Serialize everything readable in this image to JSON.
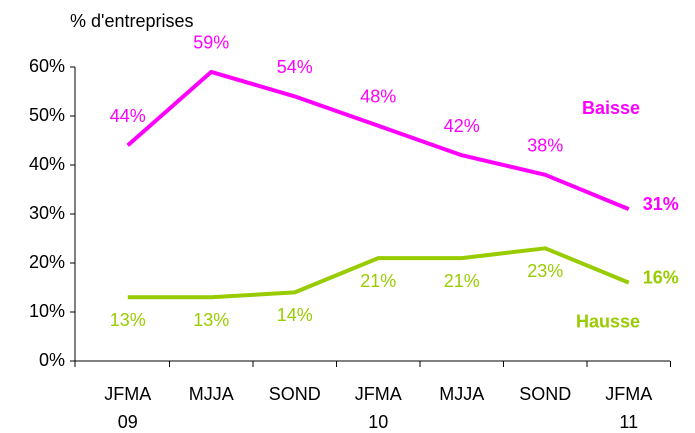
{
  "chart_data": {
    "type": "line",
    "y_axis_label": "% d'entreprises",
    "categories": [
      [
        "JFMA",
        "09"
      ],
      [
        "MJJA"
      ],
      [
        "SOND"
      ],
      [
        "JFMA",
        "10"
      ],
      [
        "MJJA"
      ],
      [
        "SOND"
      ],
      [
        "JFMA",
        "11"
      ]
    ],
    "series": [
      {
        "name": "Baisse",
        "color": "#ff00ff",
        "values": [
          44,
          59,
          54,
          48,
          42,
          38,
          31
        ],
        "value_labels": [
          "44%",
          "59%",
          "54%",
          "48%",
          "42%",
          "38%",
          "31%"
        ]
      },
      {
        "name": "Hausse",
        "color": "#99cc00",
        "values": [
          13,
          13,
          14,
          21,
          21,
          23,
          16
        ],
        "value_labels": [
          "13%",
          "13%",
          "14%",
          "21%",
          "21%",
          "23%",
          "16%"
        ]
      }
    ],
    "ylim": [
      0,
      60
    ],
    "yticks": [
      {
        "value": 0,
        "label": "0%"
      },
      {
        "value": 10,
        "label": "10%"
      },
      {
        "value": 20,
        "label": "20%"
      },
      {
        "value": 30,
        "label": "30%"
      },
      {
        "value": 40,
        "label": "40%"
      },
      {
        "value": 50,
        "label": "50%"
      },
      {
        "value": 60,
        "label": "60%"
      }
    ],
    "grid": false
  }
}
